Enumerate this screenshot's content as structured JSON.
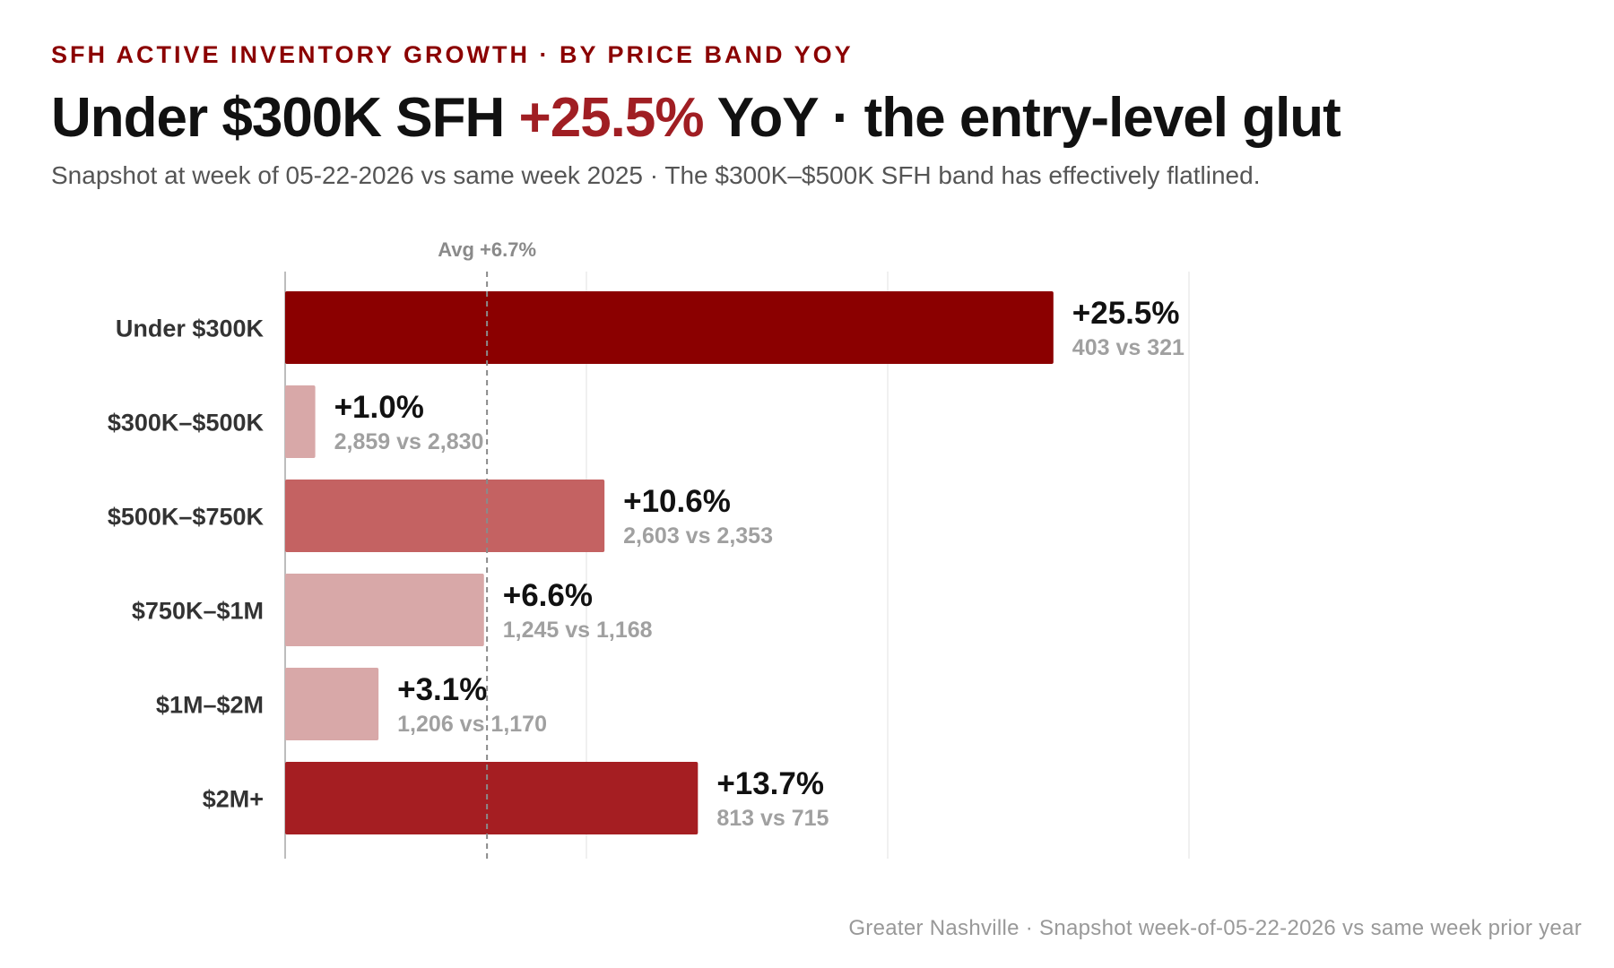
{
  "header": {
    "eyebrow": "SFH ACTIVE INVENTORY GROWTH · BY PRICE BAND YOY",
    "headline_pre": "Under $300K SFH ",
    "headline_highlight": "+25.5%",
    "headline_post": " YoY · the entry-level glut",
    "subtitle": "Snapshot at week of 05-22-2026 vs same week 2025 · The $300K–$500K SFH band has effectively flatlined."
  },
  "footnote": "Greater Nashville · Snapshot week-of-05-22-2026 vs same week prior year",
  "chart_data": {
    "type": "bar",
    "orientation": "horizontal",
    "title": "",
    "xlabel": "",
    "ylabel": "",
    "xlim": [
      0,
      30
    ],
    "gridlines_at": [
      0,
      10,
      20,
      30
    ],
    "grid": true,
    "average": {
      "value": 6.7,
      "label": "Avg +6.7%"
    },
    "categories": [
      "Under $300K",
      "$300K–$500K",
      "$500K–$750K",
      "$750K–$1M",
      "$1M–$2M",
      "$2M+"
    ],
    "values": [
      25.5,
      1.0,
      10.6,
      6.6,
      3.1,
      13.7
    ],
    "value_labels": [
      "+25.5%",
      "+1.0%",
      "+10.6%",
      "+6.6%",
      "+3.1%",
      "+13.7%"
    ],
    "comparison_labels": [
      "403 vs 321",
      "2,859 vs 2,830",
      "2,603 vs 2,353",
      "1,245 vs 1,168",
      "1,206 vs 1,170",
      "813 vs 715"
    ],
    "colors": [
      "#8b0000",
      "#d8a8a8",
      "#c46262",
      "#d8a8a8",
      "#d8a8a8",
      "#a51e22"
    ]
  }
}
